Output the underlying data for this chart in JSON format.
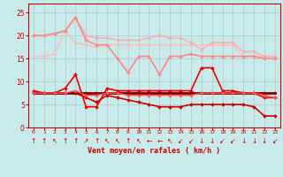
{
  "x": [
    0,
    1,
    2,
    3,
    4,
    5,
    6,
    7,
    8,
    9,
    10,
    11,
    12,
    13,
    14,
    15,
    16,
    17,
    18,
    19,
    20,
    21,
    22,
    23
  ],
  "background_color": "#c8eaea",
  "grid_color": "#aacccc",
  "xlabel": "Vent moyen/en rafales ( km/h )",
  "xlabel_color": "#cc0000",
  "tick_color": "#cc0000",
  "ylim": [
    0,
    27
  ],
  "yticks": [
    0,
    5,
    10,
    15,
    20,
    25
  ],
  "lines": [
    {
      "label": "upper_pale1",
      "color": "#ffbbbb",
      "linewidth": 1.0,
      "marker": "D",
      "markersize": 1.8,
      "y": [
        15.5,
        15.5,
        16.0,
        21.0,
        18.5,
        18.0,
        17.5,
        18.0,
        18.0,
        18.0,
        18.0,
        18.0,
        18.0,
        18.0,
        18.0,
        18.0,
        18.0,
        18.0,
        18.0,
        18.0,
        15.5,
        15.5,
        15.5,
        15.5
      ]
    },
    {
      "label": "upper_pale2",
      "color": "#ffaaaa",
      "linewidth": 1.0,
      "marker": "D",
      "markersize": 1.8,
      "y": [
        20.0,
        20.0,
        20.5,
        21.0,
        24.0,
        20.0,
        19.5,
        19.5,
        19.0,
        19.0,
        19.0,
        19.5,
        20.0,
        19.5,
        19.5,
        18.5,
        17.0,
        18.5,
        18.5,
        18.5,
        16.5,
        16.5,
        15.5,
        15.5
      ]
    },
    {
      "label": "upper_medium",
      "color": "#ff8888",
      "linewidth": 1.2,
      "marker": "D",
      "markersize": 2.0,
      "y": [
        20.0,
        20.0,
        20.5,
        21.0,
        24.0,
        19.0,
        18.0,
        18.0,
        15.0,
        12.0,
        15.5,
        15.5,
        11.5,
        15.5,
        15.5,
        16.0,
        15.5,
        15.5,
        15.5,
        15.5,
        15.5,
        15.5,
        15.0,
        15.0
      ]
    },
    {
      "label": "lower_decreasing",
      "color": "#cc0000",
      "linewidth": 1.2,
      "marker": "D",
      "markersize": 2.0,
      "y": [
        7.5,
        7.5,
        7.5,
        7.5,
        7.5,
        6.5,
        5.5,
        7.0,
        6.5,
        6.0,
        5.5,
        5.0,
        4.5,
        4.5,
        4.5,
        5.0,
        5.0,
        5.0,
        5.0,
        5.0,
        5.0,
        4.5,
        2.5,
        2.5
      ]
    },
    {
      "label": "lower_jagged",
      "color": "#ee0000",
      "linewidth": 1.2,
      "marker": "D",
      "markersize": 2.0,
      "y": [
        8.0,
        7.5,
        7.5,
        8.5,
        11.5,
        4.5,
        4.5,
        8.5,
        8.0,
        8.0,
        8.0,
        8.0,
        8.0,
        8.0,
        8.0,
        8.0,
        13.0,
        13.0,
        8.0,
        8.0,
        7.5,
        7.5,
        6.5,
        6.5
      ]
    },
    {
      "label": "lower_flat",
      "color": "#880000",
      "linewidth": 2.0,
      "marker": "s",
      "markersize": 2.0,
      "y": [
        7.5,
        7.5,
        7.5,
        7.5,
        7.5,
        7.5,
        7.5,
        7.5,
        7.5,
        7.5,
        7.5,
        7.5,
        7.5,
        7.5,
        7.5,
        7.5,
        7.5,
        7.5,
        7.5,
        7.5,
        7.5,
        7.5,
        7.5,
        7.5
      ]
    },
    {
      "label": "lower_thin_dec",
      "color": "#ff5555",
      "linewidth": 1.0,
      "marker": "D",
      "markersize": 1.8,
      "y": [
        7.5,
        7.5,
        7.5,
        7.5,
        8.0,
        7.0,
        7.0,
        7.5,
        7.5,
        7.0,
        7.0,
        7.0,
        7.0,
        7.0,
        7.0,
        7.0,
        7.5,
        7.5,
        7.5,
        7.5,
        7.5,
        7.5,
        7.0,
        6.5
      ]
    }
  ],
  "wind_arrows": [
    "↑",
    "↑",
    "↖",
    "↑",
    "↑",
    "↗",
    "↑",
    "↖",
    "↖",
    "↑",
    "↖",
    "←",
    "←",
    "↖",
    "↙",
    "↙",
    "↓",
    "↓",
    "↙",
    "↙",
    "↓",
    "↓",
    "↓",
    "↙"
  ],
  "arrow_color": "#cc0000",
  "arrow_fontsize": 5.5
}
